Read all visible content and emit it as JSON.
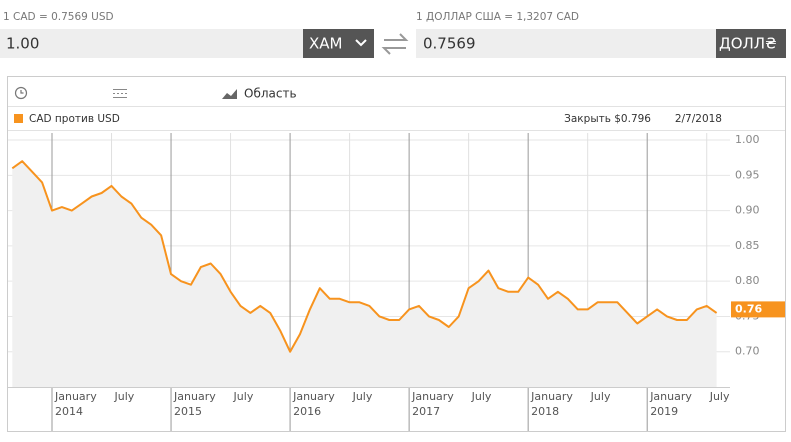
{
  "converter": {
    "left_rate": "1 CAD = 0.7569 USD",
    "left_amount": "1.00",
    "left_currency": "ХАМ",
    "right_rate": "1 ДОЛЛАР США = 1,3207 CAD",
    "right_amount": "0.7569",
    "right_currency": "ДОЛЛ₴"
  },
  "toolbar": {
    "chart_type": "Область"
  },
  "chart_data": {
    "type": "line",
    "close_text": "Закрыть $0.796",
    "date_text": "2/7/2018",
    "x": [
      "2013-09",
      "2013-10",
      "2013-11",
      "2013-12",
      "2014-01",
      "2014-02",
      "2014-03",
      "2014-04",
      "2014-05",
      "2014-06",
      "2014-07",
      "2014-08",
      "2014-09",
      "2014-10",
      "2014-11",
      "2014-12",
      "2015-01",
      "2015-02",
      "2015-03",
      "2015-04",
      "2015-05",
      "2015-06",
      "2015-07",
      "2015-08",
      "2015-09",
      "2015-10",
      "2015-11",
      "2015-12",
      "2016-01",
      "2016-02",
      "2016-03",
      "2016-04",
      "2016-05",
      "2016-06",
      "2016-07",
      "2016-08",
      "2016-09",
      "2016-10",
      "2016-11",
      "2016-12",
      "2017-01",
      "2017-02",
      "2017-03",
      "2017-04",
      "2017-05",
      "2017-06",
      "2017-07",
      "2017-08",
      "2017-09",
      "2017-10",
      "2017-11",
      "2017-12",
      "2018-01",
      "2018-02",
      "2018-03",
      "2018-04",
      "2018-05",
      "2018-06",
      "2018-07",
      "2018-08",
      "2018-09",
      "2018-10",
      "2018-11",
      "2018-12",
      "2019-01",
      "2019-02",
      "2019-03",
      "2019-04",
      "2019-05",
      "2019-06",
      "2019-07",
      "2019-08"
    ],
    "series": [
      {
        "name": "CAD против USD",
        "color": "#f7931e",
        "values": [
          0.96,
          0.97,
          0.955,
          0.94,
          0.9,
          0.905,
          0.9,
          0.91,
          0.92,
          0.925,
          0.935,
          0.92,
          0.91,
          0.89,
          0.88,
          0.865,
          0.81,
          0.8,
          0.795,
          0.82,
          0.825,
          0.81,
          0.785,
          0.765,
          0.755,
          0.765,
          0.755,
          0.73,
          0.7,
          0.725,
          0.76,
          0.79,
          0.775,
          0.775,
          0.77,
          0.77,
          0.765,
          0.75,
          0.745,
          0.745,
          0.76,
          0.765,
          0.75,
          0.745,
          0.735,
          0.75,
          0.79,
          0.8,
          0.815,
          0.79,
          0.785,
          0.785,
          0.805,
          0.795,
          0.775,
          0.785,
          0.775,
          0.76,
          0.76,
          0.77,
          0.77,
          0.77,
          0.755,
          0.74,
          0.75,
          0.76,
          0.75,
          0.745,
          0.745,
          0.76,
          0.765,
          0.755
        ]
      }
    ],
    "current_value": 0.76,
    "ylim": [
      0.65,
      1.01
    ],
    "yticks": [
      {
        "value": 0.7,
        "label": "0.70"
      },
      0.75,
      {
        "value": 0.8,
        "label": "0.80"
      },
      0.85,
      {
        "value": 0.9,
        "label": "0.90"
      },
      0.95,
      {
        "value": 1,
        "label": "1.00"
      }
    ],
    "xticks": [
      {
        "value": "2014-01",
        "label": "January",
        "year": "2014"
      },
      {
        "value": "2014-07",
        "label": "July"
      },
      {
        "value": "2015-01",
        "label": "January",
        "year": "2015"
      },
      {
        "value": "2015-07",
        "label": "July"
      },
      {
        "value": "2016-01",
        "label": "January",
        "year": "2016"
      },
      {
        "value": "2016-07",
        "label": "July"
      },
      {
        "value": "2017-01",
        "label": "January",
        "year": "2017"
      },
      {
        "value": "2017-07",
        "label": "July"
      },
      {
        "value": "2018-01",
        "label": "January",
        "year": "2018"
      },
      {
        "value": "2018-07",
        "label": "July"
      },
      {
        "value": "2019-01",
        "label": "January",
        "year": "2019"
      },
      {
        "value": "2019-07",
        "label": "July"
      }
    ],
    "grid": true,
    "area_fill": "#f0f0f0"
  }
}
